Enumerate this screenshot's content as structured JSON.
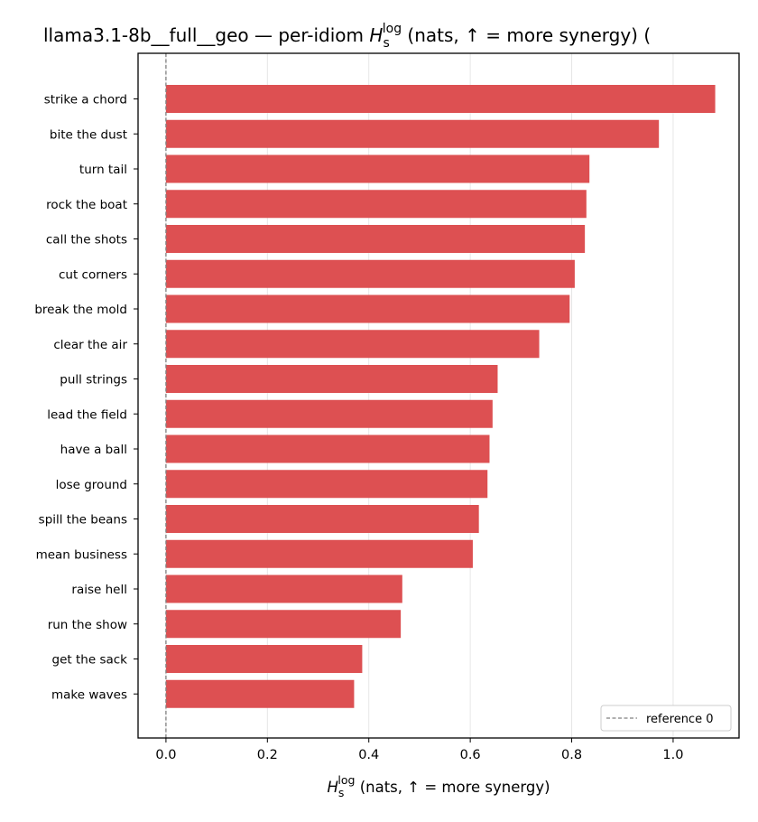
{
  "chart_data": {
    "type": "bar",
    "orientation": "horizontal",
    "title_prefix": "llama3.1-8b__full__geo — per-idiom ",
    "title_suffix": " (nats, ↑ = more synergy) (",
    "xlabel_suffix": " (nats, ↑ = more synergy)",
    "metric_symbol": "H",
    "metric_sub": "s",
    "metric_sup": "log",
    "categories": [
      "strike a chord",
      "bite the dust",
      "turn tail",
      "rock the boat",
      "call the shots",
      "cut corners",
      "break the mold",
      "clear the air",
      "pull strings",
      "lead the field",
      "have a ball",
      "lose ground",
      "spill the beans",
      "mean business",
      "raise hell",
      "run the show",
      "get the sack",
      "make waves"
    ],
    "values": [
      1.083,
      0.972,
      0.835,
      0.829,
      0.826,
      0.806,
      0.796,
      0.736,
      0.654,
      0.644,
      0.638,
      0.634,
      0.617,
      0.605,
      0.466,
      0.463,
      0.387,
      0.371
    ],
    "xlim": [
      -0.055,
      1.13
    ],
    "xticks": [
      0.0,
      0.2,
      0.4,
      0.6,
      0.8,
      1.0
    ],
    "xtick_labels": [
      "0.0",
      "0.2",
      "0.4",
      "0.6",
      "0.8",
      "1.0"
    ],
    "grid": "x",
    "bar_color": "#dd5052",
    "reference_line": {
      "x": 0,
      "label": "reference 0",
      "color": "#808080"
    },
    "legend_position": "lower-right"
  }
}
